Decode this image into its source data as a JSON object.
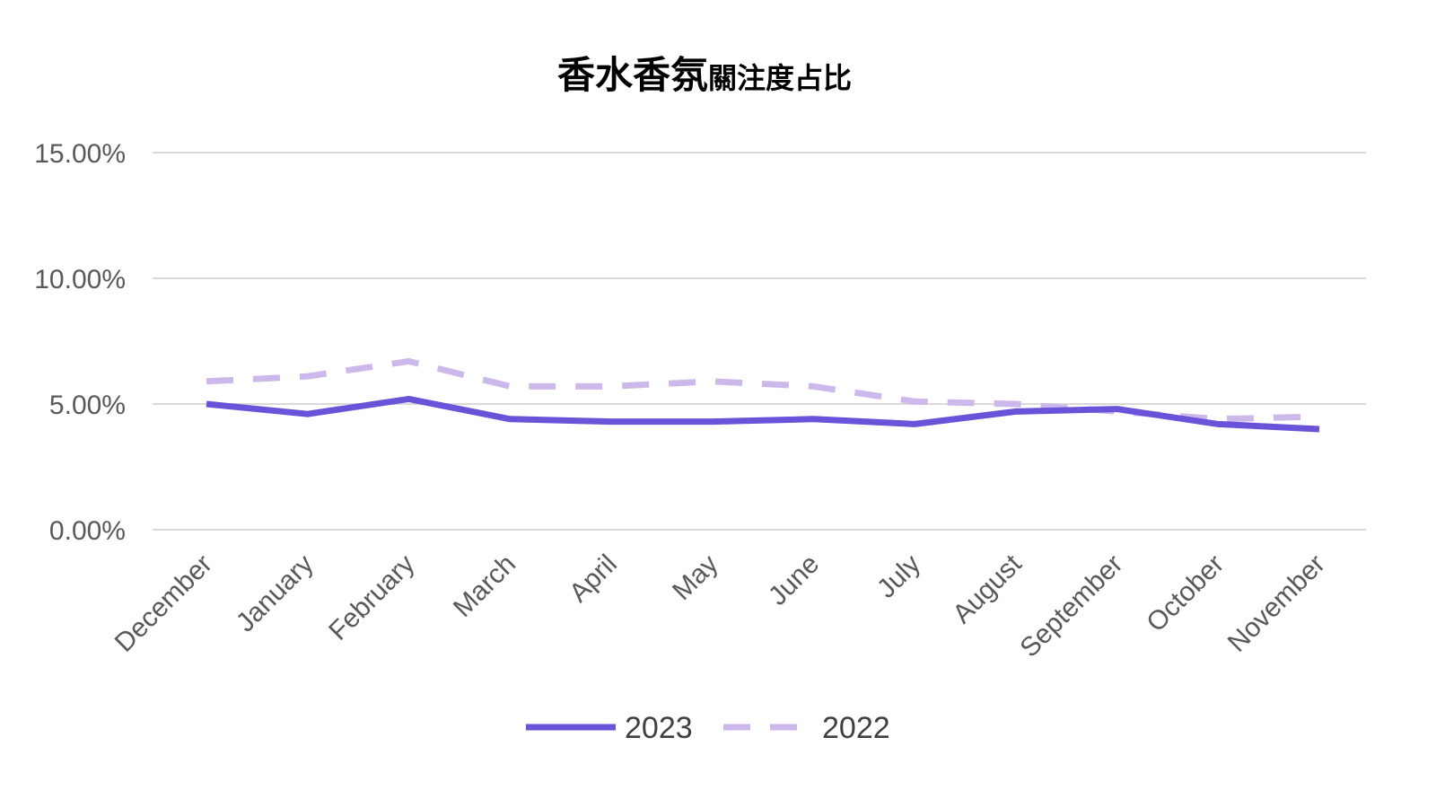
{
  "chart_data": {
    "type": "line",
    "title_main": "香水香氛",
    "title_sub": "關注度占比",
    "xlabel": "",
    "ylabel": "",
    "categories": [
      "December",
      "January",
      "February",
      "March",
      "April",
      "May",
      "June",
      "July",
      "August",
      "September",
      "October",
      "November"
    ],
    "y_ticks": [
      "0.00%",
      "5.00%",
      "10.00%",
      "15.00%"
    ],
    "ylim": [
      0,
      15
    ],
    "grid": true,
    "legend_position": "bottom",
    "series": [
      {
        "name": "2023",
        "color": "#6a52d9",
        "style": "solid",
        "values": [
          5.0,
          4.6,
          5.2,
          4.4,
          4.3,
          4.3,
          4.4,
          4.2,
          4.7,
          4.8,
          4.2,
          4.0
        ]
      },
      {
        "name": "2022",
        "color": "#cdb8ec",
        "style": "dashed",
        "values": [
          5.9,
          6.1,
          6.7,
          5.7,
          5.7,
          5.9,
          5.7,
          5.1,
          5.0,
          4.7,
          4.4,
          4.5
        ]
      }
    ]
  }
}
